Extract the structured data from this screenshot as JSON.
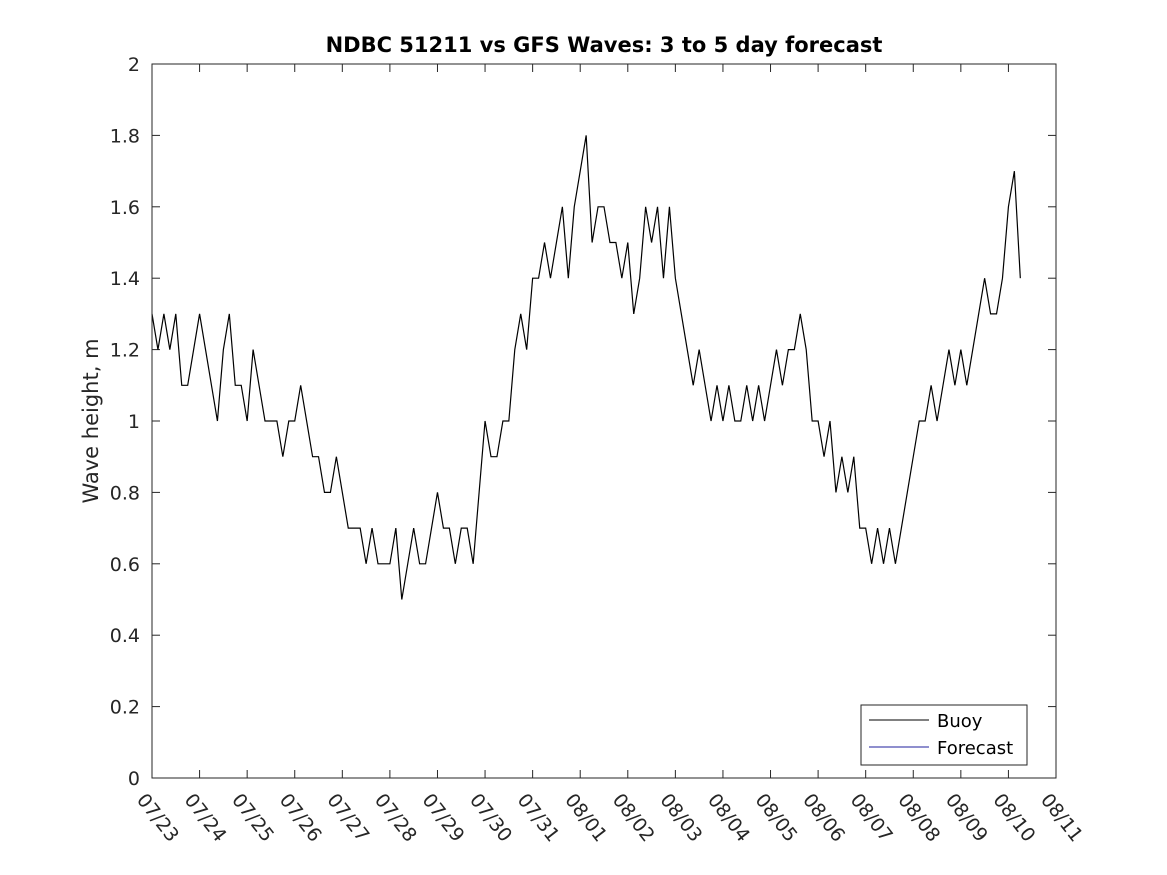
{
  "chart_data": {
    "type": "line",
    "title": "NDBC 51211 vs GFS Waves: 3 to 5 day forecast",
    "xlabel": "",
    "ylabel": "Wave height, m",
    "ylim": [
      0,
      2
    ],
    "yticks": [
      "0",
      "0.2",
      "0.4",
      "0.6",
      "0.8",
      "1",
      "1.2",
      "1.4",
      "1.6",
      "1.8",
      "2"
    ],
    "xlim": [
      "07/23",
      "08/11"
    ],
    "xticks": [
      "07/23",
      "07/24",
      "07/25",
      "07/26",
      "07/27",
      "07/28",
      "07/29",
      "07/30",
      "07/31",
      "08/01",
      "08/02",
      "08/03",
      "08/04",
      "08/05",
      "08/06",
      "08/07",
      "08/08",
      "08/09",
      "08/10",
      "08/11"
    ],
    "grid": false,
    "legend": {
      "placement": "bottom-right",
      "entries": [
        "Buoy",
        "Forecast"
      ]
    },
    "series": [
      {
        "name": "Buoy",
        "color": "#000000",
        "x": [
          "07/23 00:00",
          "07/23 03:00",
          "07/23 06:00",
          "07/23 09:00",
          "07/23 12:00",
          "07/23 15:00",
          "07/23 18:00",
          "07/23 21:00",
          "07/24 00:00",
          "07/24 03:00",
          "07/24 06:00",
          "07/24 09:00",
          "07/24 12:00",
          "07/24 15:00",
          "07/24 18:00",
          "07/24 21:00",
          "07/25 00:00",
          "07/25 03:00",
          "07/25 06:00",
          "07/25 09:00",
          "07/25 12:00",
          "07/25 15:00",
          "07/25 18:00",
          "07/25 21:00",
          "07/26 00:00",
          "07/26 03:00",
          "07/26 06:00",
          "07/26 09:00",
          "07/26 12:00",
          "07/26 15:00",
          "07/26 18:00",
          "07/26 21:00",
          "07/27 00:00",
          "07/27 03:00",
          "07/27 06:00",
          "07/27 09:00",
          "07/27 12:00",
          "07/27 15:00",
          "07/27 18:00",
          "07/27 21:00",
          "07/28 00:00",
          "07/28 03:00",
          "07/28 06:00",
          "07/28 09:00",
          "07/28 12:00",
          "07/28 15:00",
          "07/28 18:00",
          "07/28 21:00",
          "07/29 00:00",
          "07/29 03:00",
          "07/29 06:00",
          "07/29 09:00",
          "07/29 12:00",
          "07/29 15:00",
          "07/29 18:00",
          "07/29 21:00",
          "07/30 00:00",
          "07/30 03:00",
          "07/30 06:00",
          "07/30 09:00",
          "07/30 12:00",
          "07/30 15:00",
          "07/30 18:00",
          "07/30 21:00",
          "07/31 00:00",
          "07/31 03:00",
          "07/31 06:00",
          "07/31 09:00",
          "07/31 12:00",
          "07/31 15:00",
          "07/31 18:00",
          "07/31 21:00",
          "08/01 00:00",
          "08/01 03:00",
          "08/01 06:00",
          "08/01 09:00",
          "08/01 12:00",
          "08/01 15:00",
          "08/01 18:00",
          "08/01 21:00",
          "08/02 00:00",
          "08/02 03:00",
          "08/02 06:00",
          "08/02 09:00",
          "08/02 12:00",
          "08/02 15:00",
          "08/02 18:00",
          "08/02 21:00",
          "08/03 00:00",
          "08/03 03:00",
          "08/03 06:00",
          "08/03 09:00",
          "08/03 12:00",
          "08/03 15:00",
          "08/03 18:00",
          "08/03 21:00",
          "08/04 00:00",
          "08/04 03:00",
          "08/04 06:00",
          "08/04 09:00",
          "08/04 12:00",
          "08/04 15:00",
          "08/04 18:00",
          "08/04 21:00",
          "08/05 00:00",
          "08/05 03:00",
          "08/05 06:00",
          "08/05 09:00",
          "08/05 12:00",
          "08/05 15:00",
          "08/05 18:00",
          "08/05 21:00",
          "08/06 00:00",
          "08/06 03:00",
          "08/06 06:00",
          "08/06 09:00",
          "08/06 12:00",
          "08/06 15:00",
          "08/06 18:00",
          "08/06 21:00",
          "08/07 00:00",
          "08/07 03:00",
          "08/07 06:00",
          "08/07 09:00",
          "08/07 12:00",
          "08/07 15:00",
          "08/07 18:00",
          "08/07 21:00",
          "08/08 00:00",
          "08/08 03:00",
          "08/08 06:00",
          "08/08 09:00",
          "08/08 12:00",
          "08/08 15:00",
          "08/08 18:00",
          "08/08 21:00",
          "08/09 00:00",
          "08/09 03:00",
          "08/09 06:00",
          "08/09 09:00",
          "08/09 12:00",
          "08/09 15:00",
          "08/09 18:00",
          "08/09 21:00",
          "08/10 00:00",
          "08/10 03:00",
          "08/10 06:00"
        ],
        "values": [
          1.3,
          1.2,
          1.3,
          1.2,
          1.3,
          1.1,
          1.1,
          1.2,
          1.3,
          1.2,
          1.1,
          1.0,
          1.2,
          1.3,
          1.1,
          1.1,
          1.0,
          1.2,
          1.1,
          1.0,
          1.0,
          1.0,
          0.9,
          1.0,
          1.0,
          1.1,
          1.0,
          0.9,
          0.9,
          0.8,
          0.8,
          0.9,
          0.8,
          0.7,
          0.7,
          0.7,
          0.6,
          0.7,
          0.6,
          0.6,
          0.6,
          0.7,
          0.5,
          0.6,
          0.7,
          0.6,
          0.6,
          0.7,
          0.8,
          0.7,
          0.7,
          0.6,
          0.7,
          0.7,
          0.6,
          0.8,
          1.0,
          0.9,
          0.9,
          1.0,
          1.0,
          1.2,
          1.3,
          1.2,
          1.4,
          1.4,
          1.5,
          1.4,
          1.5,
          1.6,
          1.4,
          1.6,
          1.7,
          1.8,
          1.5,
          1.6,
          1.6,
          1.5,
          1.5,
          1.4,
          1.5,
          1.3,
          1.4,
          1.6,
          1.5,
          1.6,
          1.4,
          1.6,
          1.4,
          1.3,
          1.2,
          1.1,
          1.2,
          1.1,
          1.0,
          1.1,
          1.0,
          1.1,
          1.0,
          1.0,
          1.1,
          1.0,
          1.1,
          1.0,
          1.1,
          1.2,
          1.1,
          1.2,
          1.2,
          1.3,
          1.2,
          1.0,
          1.0,
          0.9,
          1.0,
          0.8,
          0.9,
          0.8,
          0.9,
          0.7,
          0.7,
          0.6,
          0.7,
          0.6,
          0.7,
          0.6,
          0.7,
          0.8,
          0.9,
          1.0,
          1.0,
          1.1,
          1.0,
          1.1,
          1.2,
          1.1,
          1.2,
          1.1,
          1.2,
          1.3,
          1.4,
          1.3,
          1.3,
          1.4,
          1.6,
          1.7,
          1.4
        ]
      },
      {
        "name": "Forecast",
        "color": "#1f1f9e",
        "x": [],
        "values": []
      }
    ]
  }
}
